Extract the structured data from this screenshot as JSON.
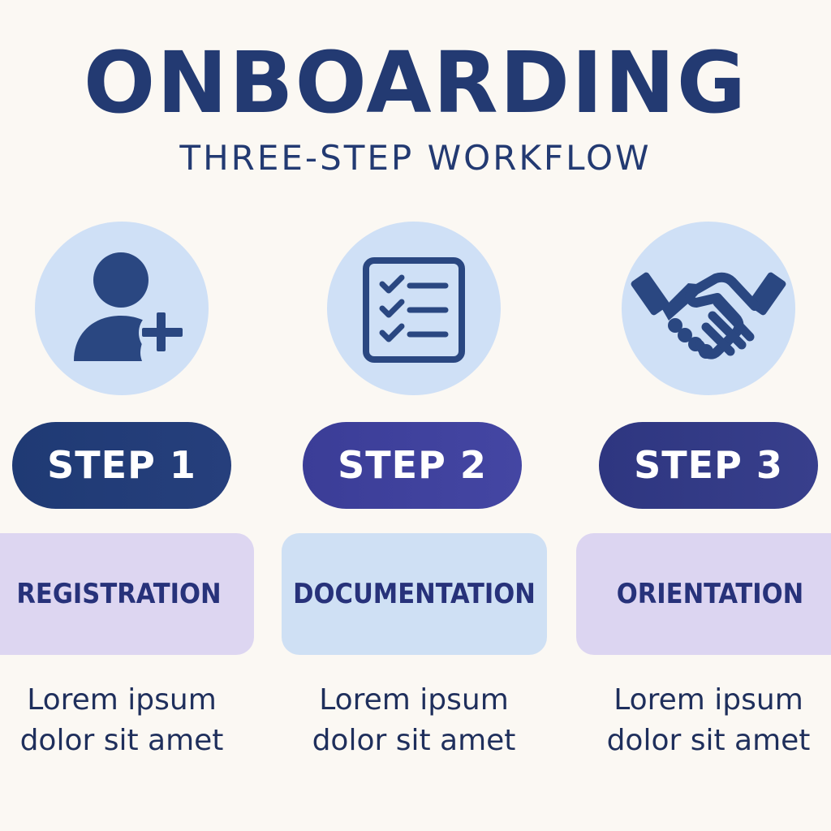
{
  "header": {
    "title": "ONBOARDING",
    "subtitle": "THREE-STEP WORKFLOW"
  },
  "colors": {
    "background": "#fbf8f3",
    "primary_text": "#233a72",
    "icon_circle": "#cfe0f6",
    "icon": "#2a4781",
    "step_1_pill": "#233c77",
    "step_2_pill": "#40429e",
    "step_3_pill": "#333b86",
    "label_lavender": "#ddd6f1",
    "label_blue": "#cfe0f4"
  },
  "steps": [
    {
      "icon": "add-user-icon",
      "pill": "STEP 1",
      "label": "REGISTRATION",
      "desc_line1": "Lorem ipsum",
      "desc_line2": "dolor sit amet"
    },
    {
      "icon": "checklist-icon",
      "pill": "STEP 2",
      "label": "DOCUMENTATION",
      "desc_line1": "Lorem ipsum",
      "desc_line2": "dolor sit amet"
    },
    {
      "icon": "handshake-icon",
      "pill": "STEP 3",
      "label": "ORIENTATION",
      "desc_line1": "Lorem ipsum",
      "desc_line2": "dolor sit amet"
    }
  ]
}
